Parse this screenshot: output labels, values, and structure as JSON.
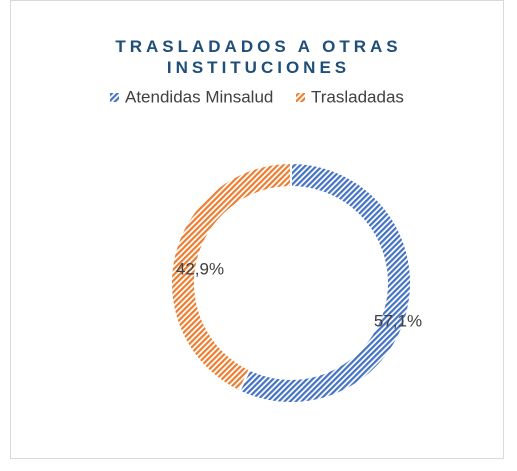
{
  "chart_data": {
    "type": "donut",
    "title": "TRASLADADOS A OTRAS INSTITUCIONES",
    "categories": [
      "Atendidas Minsalud",
      "Trasladadas"
    ],
    "values": [
      57.1,
      42.9
    ],
    "value_labels": [
      "57,1%",
      "42,9%"
    ],
    "colors": [
      "#4472c4",
      "#ed7d31"
    ],
    "legend": "top"
  }
}
